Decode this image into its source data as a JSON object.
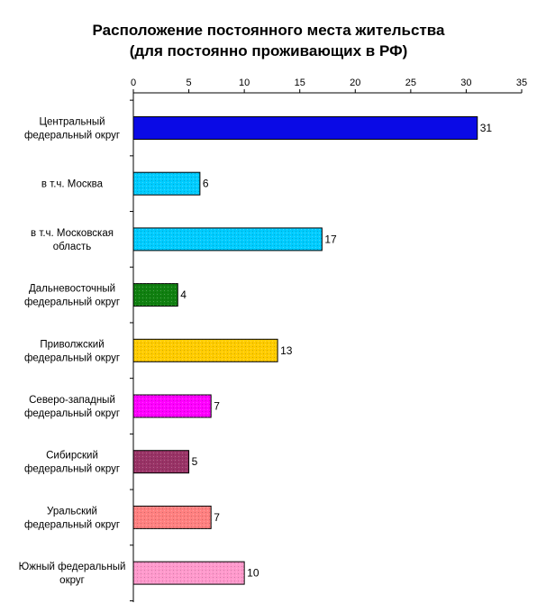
{
  "chart_data": {
    "type": "bar",
    "orientation": "horizontal",
    "title": "Расположение постоянного места жительства",
    "subtitle": "(для постоянно проживающих в РФ)",
    "xlabel": "",
    "ylabel": "",
    "xlim": [
      0,
      35
    ],
    "xticks": [
      "0",
      "5",
      "10",
      "15",
      "20",
      "25",
      "30",
      "35"
    ],
    "grid": false,
    "legend": "none",
    "categories": [
      [
        "Центральный",
        "федеральный округ"
      ],
      [
        "в т.ч. Москва"
      ],
      [
        "в т.ч. Московская",
        "область"
      ],
      [
        "Дальневосточный",
        "федеральный округ"
      ],
      [
        "Приволжский",
        "федеральный округ"
      ],
      [
        "Северо-западный",
        "федеральный округ"
      ],
      [
        "Сибирский",
        "федеральный округ"
      ],
      [
        "Уральский",
        "федеральный округ"
      ],
      [
        "Южный федеральный",
        "округ"
      ]
    ],
    "values": [
      31,
      6,
      17,
      4,
      13,
      7,
      5,
      7,
      10
    ],
    "data_labels": [
      "31",
      "6",
      "17",
      "4",
      "13",
      "7",
      "5",
      "7",
      "10"
    ],
    "colors": [
      "#0A0AE6",
      "#00CCFF",
      "#00CCFF",
      "#108010",
      "#FFCC00",
      "#FF00FF",
      "#993366",
      "#FF8080",
      "#FF99CC"
    ]
  }
}
